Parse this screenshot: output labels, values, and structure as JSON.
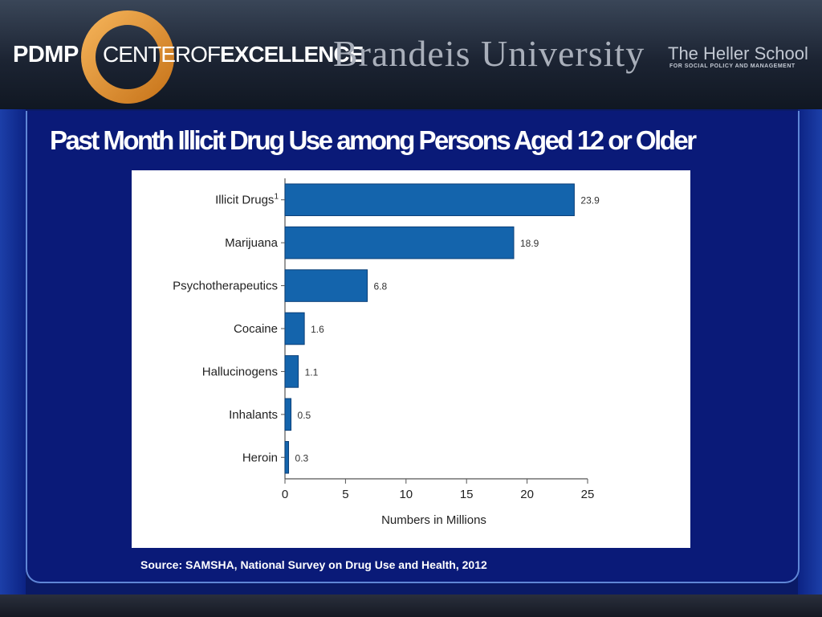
{
  "header": {
    "pdmp": "PDMP",
    "center_thin": "CENTER",
    "center_of": "OF",
    "center_bold": "EXCELLENCE",
    "university": "Brandeis University",
    "school": "The Heller School",
    "school_sub": "FOR SOCIAL POLICY AND MANAGEMENT"
  },
  "slide": {
    "title": "Past Month Illicit Drug Use among Persons Aged 12 or Older",
    "source": "Source: SAMSHA, National Survey on Drug Use and Health, 2012"
  },
  "colors": {
    "bar": "#1464ac",
    "bar_edge": "#0b3f78",
    "background": "#0a1a66"
  },
  "chart_data": {
    "type": "bar",
    "orientation": "horizontal",
    "categories": [
      "Illicit Drugs",
      "Marijuana",
      "Psychotherapeutics",
      "Cocaine",
      "Hallucinogens",
      "Inhalants",
      "Heroin"
    ],
    "category_superscripts": [
      "1",
      "",
      "",
      "",
      "",
      "",
      ""
    ],
    "values": [
      23.9,
      18.9,
      6.8,
      1.6,
      1.1,
      0.5,
      0.3
    ],
    "data_labels": [
      "23.9",
      "18.9",
      "6.8",
      "1.6",
      "1.1",
      "0.5",
      "0.3"
    ],
    "xlabel": "Numbers in Millions",
    "xlim": [
      0,
      25
    ],
    "xticks": [
      0,
      5,
      10,
      15,
      20,
      25
    ],
    "grid": false,
    "legend": "none"
  }
}
